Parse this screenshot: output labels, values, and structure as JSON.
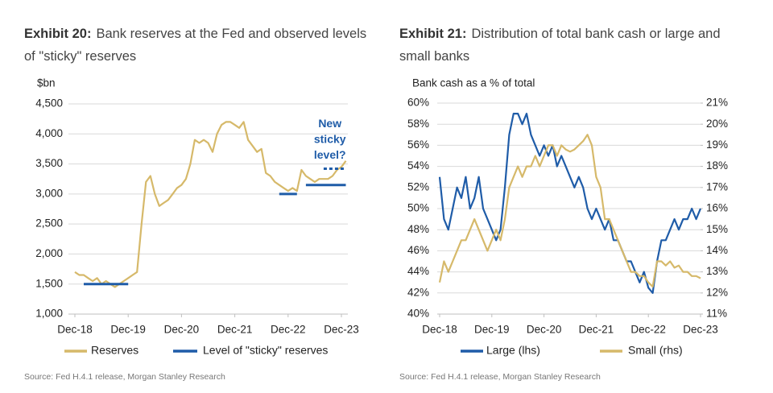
{
  "chart_data": [
    {
      "type": "line",
      "title_label": "Exhibit 20:",
      "title": "Bank reserves at the Fed and observed levels of \"sticky\" reserves",
      "y_label": "$bn",
      "x": [
        "Dec-18",
        "Jan-19",
        "Feb-19",
        "Mar-19",
        "Apr-19",
        "May-19",
        "Jun-19",
        "Jul-19",
        "Aug-19",
        "Sep-19",
        "Oct-19",
        "Nov-19",
        "Dec-19",
        "Jan-20",
        "Feb-20",
        "Mar-20",
        "Apr-20",
        "May-20",
        "Jun-20",
        "Jul-20",
        "Aug-20",
        "Sep-20",
        "Oct-20",
        "Nov-20",
        "Dec-20",
        "Jan-21",
        "Feb-21",
        "Mar-21",
        "Apr-21",
        "May-21",
        "Jun-21",
        "Jul-21",
        "Aug-21",
        "Sep-21",
        "Oct-21",
        "Nov-21",
        "Dec-21",
        "Jan-22",
        "Feb-22",
        "Mar-22",
        "Apr-22",
        "May-22",
        "Jun-22",
        "Jul-22",
        "Aug-22",
        "Sep-22",
        "Oct-22",
        "Nov-22",
        "Dec-22",
        "Jan-23",
        "Feb-23",
        "Mar-23",
        "Apr-23",
        "May-23",
        "Jun-23",
        "Jul-23",
        "Aug-23",
        "Sep-23",
        "Oct-23",
        "Nov-23",
        "Dec-23",
        "Jan-24"
      ],
      "xticks": [
        "Dec-18",
        "Dec-19",
        "Dec-20",
        "Dec-21",
        "Dec-22",
        "Dec-23"
      ],
      "ylim": [
        1000,
        4500
      ],
      "yticks": [
        {
          "value": 1000,
          "label": "1,000"
        },
        {
          "value": 1500,
          "label": "1,500"
        },
        {
          "value": 2000,
          "label": "2,000"
        },
        {
          "value": 2500,
          "label": "2,500"
        },
        {
          "value": 3000,
          "label": "3,000"
        },
        {
          "value": 3500,
          "label": "3,500"
        },
        {
          "value": 4000,
          "label": "4,000"
        },
        {
          "value": 4500,
          "label": "4,500"
        }
      ],
      "grid": true,
      "series": [
        {
          "name": "Reserves",
          "color": "#d6b96a",
          "values": [
            1700,
            1650,
            1650,
            1600,
            1550,
            1600,
            1500,
            1550,
            1500,
            1450,
            1500,
            1550,
            1600,
            1650,
            1700,
            2500,
            3200,
            3300,
            3000,
            2800,
            2850,
            2900,
            3000,
            3100,
            3150,
            3250,
            3500,
            3900,
            3850,
            3900,
            3850,
            3700,
            4000,
            4150,
            4200,
            4200,
            4150,
            4100,
            4200,
            3900,
            3800,
            3700,
            3750,
            3350,
            3300,
            3200,
            3150,
            3100,
            3050,
            3100,
            3050,
            3400,
            3300,
            3250,
            3200,
            3250,
            3250,
            3250,
            3300,
            3400,
            3450,
            3550
          ]
        },
        {
          "name": "Level of \"sticky\" reserves",
          "color": "#1f5ca8",
          "values": [
            null,
            null,
            1500,
            1500,
            1500,
            1500,
            1500,
            1500,
            1500,
            1500,
            1500,
            1500,
            1500,
            null,
            null,
            null,
            null,
            null,
            null,
            null,
            null,
            null,
            null,
            null,
            null,
            null,
            null,
            null,
            null,
            null,
            null,
            null,
            null,
            null,
            null,
            null,
            null,
            null,
            null,
            null,
            null,
            null,
            null,
            null,
            null,
            null,
            3000,
            3000,
            3000,
            3000,
            3000,
            null,
            3150,
            3150,
            3150,
            3150,
            3150,
            3150,
            3150,
            3150,
            3150,
            3150
          ]
        }
      ],
      "annotation": {
        "text": [
          "New",
          "sticky",
          "level?"
        ],
        "color": "#1f5ca8",
        "x": [
          "Aug-23",
          "Jan-24"
        ],
        "values": [
          3420,
          3420
        ]
      },
      "source": "Source: Fed H.4.1 release, Morgan Stanley Research"
    },
    {
      "type": "line",
      "title_label": "Exhibit 21:",
      "title": "Distribution of total bank cash or large and small banks",
      "y_label": "Bank cash as a % of total",
      "x": [
        "Dec-18",
        "Jan-19",
        "Feb-19",
        "Mar-19",
        "Apr-19",
        "May-19",
        "Jun-19",
        "Jul-19",
        "Aug-19",
        "Sep-19",
        "Oct-19",
        "Nov-19",
        "Dec-19",
        "Jan-20",
        "Feb-20",
        "Mar-20",
        "Apr-20",
        "May-20",
        "Jun-20",
        "Jul-20",
        "Aug-20",
        "Sep-20",
        "Oct-20",
        "Nov-20",
        "Dec-20",
        "Jan-21",
        "Feb-21",
        "Mar-21",
        "Apr-21",
        "May-21",
        "Jun-21",
        "Jul-21",
        "Aug-21",
        "Sep-21",
        "Oct-21",
        "Nov-21",
        "Dec-21",
        "Jan-22",
        "Feb-22",
        "Mar-22",
        "Apr-22",
        "May-22",
        "Jun-22",
        "Jul-22",
        "Aug-22",
        "Sep-22",
        "Oct-22",
        "Nov-22",
        "Dec-22",
        "Jan-23",
        "Feb-23",
        "Mar-23",
        "Apr-23",
        "May-23",
        "Jun-23",
        "Jul-23",
        "Aug-23",
        "Sep-23",
        "Oct-23",
        "Nov-23",
        "Dec-23"
      ],
      "xticks": [
        "Dec-18",
        "Dec-19",
        "Dec-20",
        "Dec-21",
        "Dec-22",
        "Dec-23"
      ],
      "ylim": [
        40,
        60
      ],
      "yticks": [
        {
          "value": 40,
          "label": "40%"
        },
        {
          "value": 42,
          "label": "42%"
        },
        {
          "value": 44,
          "label": "44%"
        },
        {
          "value": 46,
          "label": "46%"
        },
        {
          "value": 48,
          "label": "48%"
        },
        {
          "value": 50,
          "label": "50%"
        },
        {
          "value": 52,
          "label": "52%"
        },
        {
          "value": 54,
          "label": "54%"
        },
        {
          "value": 56,
          "label": "56%"
        },
        {
          "value": 58,
          "label": "58%"
        },
        {
          "value": 60,
          "label": "60%"
        }
      ],
      "y2lim": [
        11,
        21
      ],
      "y2ticks": [
        {
          "value": 11,
          "label": "11%"
        },
        {
          "value": 12,
          "label": "12%"
        },
        {
          "value": 13,
          "label": "13%"
        },
        {
          "value": 14,
          "label": "14%"
        },
        {
          "value": 15,
          "label": "15%"
        },
        {
          "value": 16,
          "label": "16%"
        },
        {
          "value": 17,
          "label": "17%"
        },
        {
          "value": 18,
          "label": "18%"
        },
        {
          "value": 19,
          "label": "19%"
        },
        {
          "value": 20,
          "label": "20%"
        },
        {
          "value": 21,
          "label": "21%"
        }
      ],
      "grid": true,
      "series": [
        {
          "name": "Large (lhs)",
          "color": "#1f5ca8",
          "values": [
            53,
            49,
            48,
            50,
            52,
            51,
            53,
            50,
            51,
            53,
            50,
            49,
            48,
            47,
            48,
            52,
            57,
            59,
            59,
            58,
            59,
            57,
            56,
            55,
            56,
            55,
            56,
            54,
            55,
            54,
            53,
            52,
            53,
            52,
            50,
            49,
            50,
            49,
            48,
            49,
            47,
            47,
            46,
            45,
            45,
            44,
            43,
            44,
            42.5,
            42,
            45,
            47,
            47,
            48,
            49,
            48,
            49,
            49,
            50,
            49,
            50
          ]
        },
        {
          "name": "Small (rhs)",
          "axis": "y2",
          "color": "#d6b96a",
          "values": [
            12.5,
            13.5,
            13,
            13.5,
            14,
            14.5,
            14.5,
            15,
            15.5,
            15,
            14.5,
            14,
            14.5,
            15,
            14.5,
            15.5,
            17,
            17.5,
            18,
            17.5,
            18,
            18,
            18.5,
            18,
            18.5,
            19,
            19,
            18.5,
            19,
            18.8,
            18.7,
            18.8,
            19,
            19.2,
            19.5,
            19,
            17.5,
            17,
            15.5,
            15.5,
            15,
            14.5,
            14,
            13.5,
            13,
            13,
            12.8,
            12.8,
            12.5,
            12.3,
            13.5,
            13.5,
            13.3,
            13.5,
            13.2,
            13.3,
            13,
            13,
            12.8,
            12.8,
            12.7
          ]
        }
      ],
      "source": "Source: Fed H.4.1 release, Morgan Stanley Research"
    }
  ]
}
